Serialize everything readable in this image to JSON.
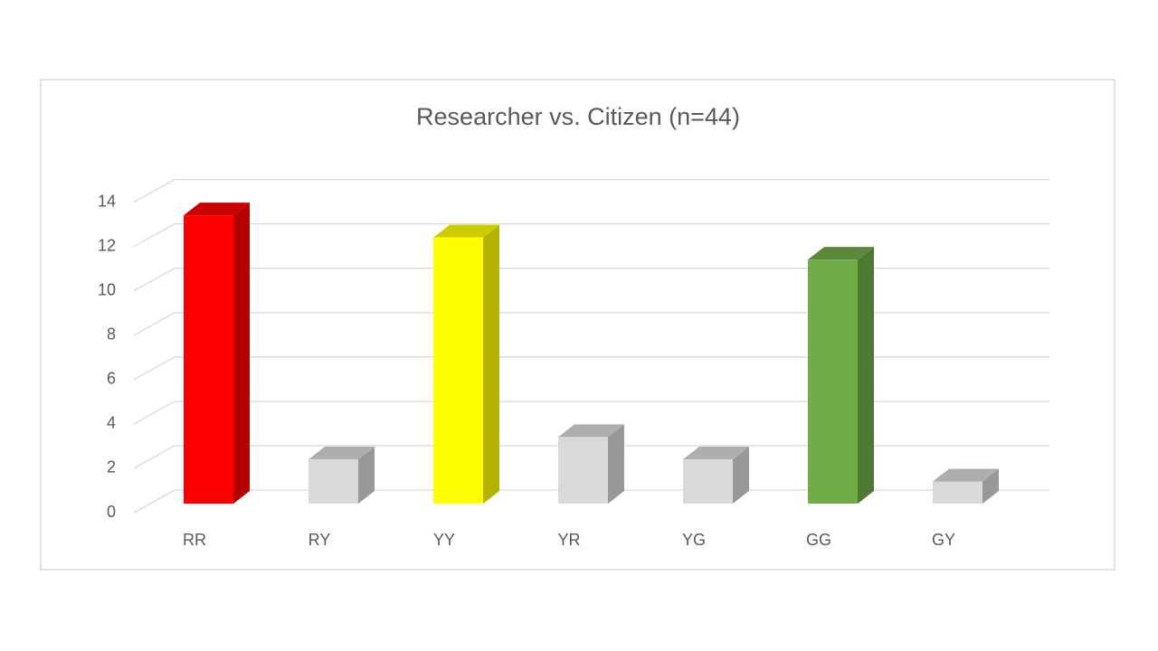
{
  "chart_data": {
    "type": "bar3d",
    "title": "Researcher vs. Citizen (n=44)",
    "categories": [
      "RR",
      "RY",
      "YY",
      "YR",
      "YG",
      "GG",
      "GY"
    ],
    "values": [
      13,
      2,
      12,
      3,
      2,
      11,
      1
    ],
    "colors": [
      "#ff0000",
      "#d9d9d9",
      "#ffff00",
      "#d9d9d9",
      "#d9d9d9",
      "#70ad47",
      "#d9d9d9"
    ],
    "ylim": [
      0,
      14
    ],
    "yticks": [
      0,
      2,
      4,
      6,
      8,
      10,
      12,
      14
    ],
    "grid": true
  }
}
